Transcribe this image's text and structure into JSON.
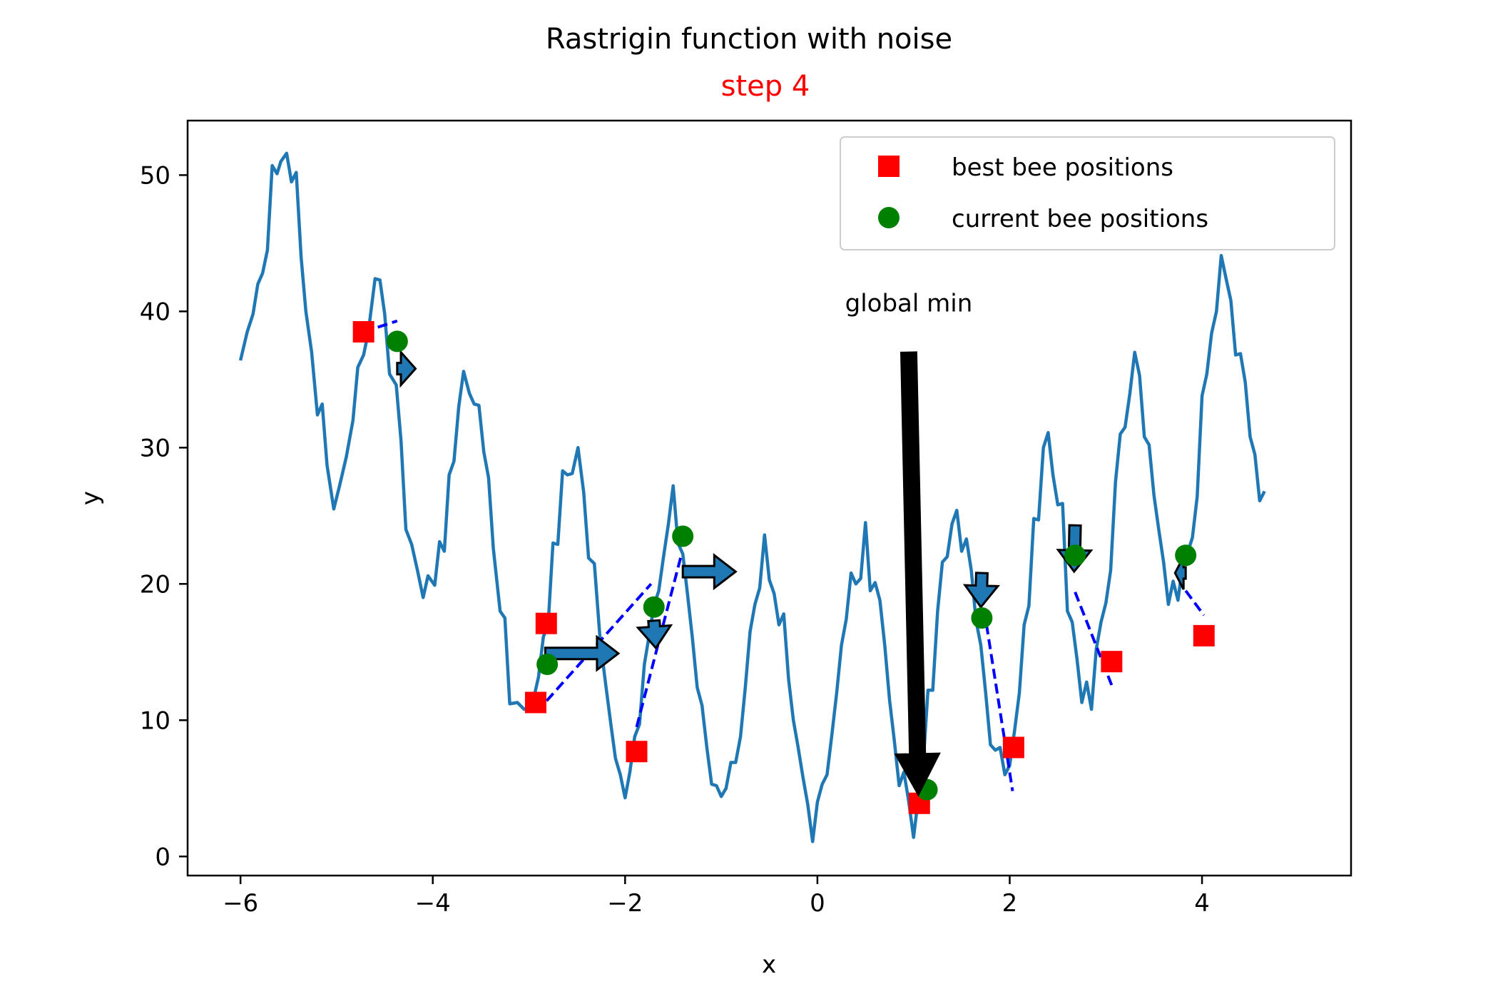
{
  "chart_data": {
    "type": "line",
    "title": "Rastrigin function with noise",
    "subtitle": "step 4",
    "subtitle_color": "#ff0000",
    "xlabel": "x",
    "ylabel": "y",
    "xlim": [
      -6.55,
      5.55
    ],
    "ylim": [
      -1.4,
      54.0
    ],
    "xticks": [
      {
        "value": -6,
        "label": "−6"
      },
      {
        "value": -4,
        "label": "−4"
      },
      {
        "value": -2,
        "label": "−2"
      },
      {
        "value": 0,
        "label": "0"
      },
      {
        "value": 2,
        "label": "2"
      },
      {
        "value": 4,
        "label": "4"
      }
    ],
    "yticks": [
      {
        "value": 0,
        "label": "0"
      },
      {
        "value": 10,
        "label": "10"
      },
      {
        "value": 20,
        "label": "20"
      },
      {
        "value": 30,
        "label": "30"
      },
      {
        "value": 40,
        "label": "40"
      },
      {
        "value": 50,
        "label": "50"
      }
    ],
    "grid": false,
    "legend_position": "top-right",
    "curve": {
      "color": "#1f77b4",
      "points": [
        [
          -6.0,
          36.4
        ],
        [
          -5.93,
          38.5
        ],
        [
          -5.87,
          39.8
        ],
        [
          -5.82,
          42.0
        ],
        [
          -5.77,
          42.8
        ],
        [
          -5.72,
          44.5
        ],
        [
          -5.67,
          50.7
        ],
        [
          -5.62,
          50.1
        ],
        [
          -5.58,
          51.0
        ],
        [
          -5.52,
          51.6
        ],
        [
          -5.47,
          49.5
        ],
        [
          -5.42,
          50.2
        ],
        [
          -5.37,
          44.0
        ],
        [
          -5.32,
          40.0
        ],
        [
          -5.26,
          37.0
        ],
        [
          -5.2,
          32.4
        ],
        [
          -5.15,
          33.2
        ],
        [
          -5.1,
          28.7
        ],
        [
          -5.03,
          25.5
        ],
        [
          -4.97,
          27.2
        ],
        [
          -4.9,
          29.3
        ],
        [
          -4.83,
          32.0
        ],
        [
          -4.78,
          35.9
        ],
        [
          -4.72,
          36.8
        ],
        [
          -4.67,
          38.5
        ],
        [
          -4.6,
          42.4
        ],
        [
          -4.55,
          42.3
        ],
        [
          -4.5,
          39.8
        ],
        [
          -4.45,
          35.4
        ],
        [
          -4.38,
          34.6
        ],
        [
          -4.33,
          30.5
        ],
        [
          -4.28,
          24.0
        ],
        [
          -4.22,
          22.9
        ],
        [
          -4.16,
          21.0
        ],
        [
          -4.1,
          19.0
        ],
        [
          -4.05,
          20.6
        ],
        [
          -3.98,
          19.9
        ],
        [
          -3.93,
          23.1
        ],
        [
          -3.88,
          22.4
        ],
        [
          -3.83,
          28.0
        ],
        [
          -3.78,
          29.0
        ],
        [
          -3.73,
          33.0
        ],
        [
          -3.68,
          35.6
        ],
        [
          -3.62,
          34.0
        ],
        [
          -3.57,
          33.2
        ],
        [
          -3.52,
          33.1
        ],
        [
          -3.47,
          29.7
        ],
        [
          -3.42,
          27.8
        ],
        [
          -3.37,
          22.6
        ],
        [
          -3.3,
          18.0
        ],
        [
          -3.25,
          17.5
        ],
        [
          -3.2,
          11.2
        ],
        [
          -3.12,
          11.3
        ],
        [
          -3.05,
          10.8
        ],
        [
          -2.97,
          11.0
        ],
        [
          -2.9,
          13.2
        ],
        [
          -2.85,
          16.1
        ],
        [
          -2.8,
          17.1
        ],
        [
          -2.75,
          23.0
        ],
        [
          -2.7,
          22.9
        ],
        [
          -2.65,
          28.3
        ],
        [
          -2.6,
          28.0
        ],
        [
          -2.55,
          28.1
        ],
        [
          -2.49,
          30.0
        ],
        [
          -2.43,
          26.7
        ],
        [
          -2.38,
          21.9
        ],
        [
          -2.32,
          21.5
        ],
        [
          -2.26,
          15.9
        ],
        [
          -2.2,
          12.5
        ],
        [
          -2.15,
          9.8
        ],
        [
          -2.1,
          7.2
        ],
        [
          -2.05,
          6.0
        ],
        [
          -2.0,
          4.3
        ],
        [
          -1.95,
          6.2
        ],
        [
          -1.9,
          8.8
        ],
        [
          -1.85,
          9.7
        ],
        [
          -1.8,
          14.1
        ],
        [
          -1.75,
          16.2
        ],
        [
          -1.7,
          18.4
        ],
        [
          -1.65,
          19.5
        ],
        [
          -1.6,
          22.0
        ],
        [
          -1.55,
          24.4
        ],
        [
          -1.5,
          27.2
        ],
        [
          -1.45,
          23.0
        ],
        [
          -1.4,
          22.2
        ],
        [
          -1.35,
          19.2
        ],
        [
          -1.3,
          16.0
        ],
        [
          -1.25,
          12.4
        ],
        [
          -1.2,
          11.1
        ],
        [
          -1.15,
          8.0
        ],
        [
          -1.1,
          5.3
        ],
        [
          -1.05,
          5.2
        ],
        [
          -1.0,
          4.4
        ],
        [
          -0.95,
          5.0
        ],
        [
          -0.9,
          6.9
        ],
        [
          -0.85,
          6.9
        ],
        [
          -0.8,
          8.8
        ],
        [
          -0.75,
          12.4
        ],
        [
          -0.7,
          16.5
        ],
        [
          -0.65,
          18.5
        ],
        [
          -0.6,
          19.7
        ],
        [
          -0.55,
          23.6
        ],
        [
          -0.5,
          20.3
        ],
        [
          -0.45,
          19.3
        ],
        [
          -0.4,
          17.0
        ],
        [
          -0.35,
          17.8
        ],
        [
          -0.3,
          13.0
        ],
        [
          -0.25,
          10.0
        ],
        [
          -0.2,
          8.0
        ],
        [
          -0.15,
          5.8
        ],
        [
          -0.1,
          3.8
        ],
        [
          -0.05,
          1.1
        ],
        [
          0.0,
          4.0
        ],
        [
          0.05,
          5.3
        ],
        [
          0.1,
          6.0
        ],
        [
          0.15,
          8.9
        ],
        [
          0.2,
          12.0
        ],
        [
          0.25,
          15.5
        ],
        [
          0.3,
          17.4
        ],
        [
          0.35,
          20.8
        ],
        [
          0.4,
          20.0
        ],
        [
          0.45,
          20.4
        ],
        [
          0.5,
          24.5
        ],
        [
          0.55,
          19.5
        ],
        [
          0.6,
          20.1
        ],
        [
          0.65,
          18.8
        ],
        [
          0.7,
          15.5
        ],
        [
          0.75,
          11.5
        ],
        [
          0.8,
          8.5
        ],
        [
          0.85,
          5.2
        ],
        [
          0.9,
          6.2
        ],
        [
          0.95,
          4.0
        ],
        [
          1.0,
          1.4
        ],
        [
          1.05,
          4.3
        ],
        [
          1.1,
          6.8
        ],
        [
          1.15,
          12.2
        ],
        [
          1.2,
          12.2
        ],
        [
          1.25,
          18.0
        ],
        [
          1.3,
          21.6
        ],
        [
          1.35,
          22.0
        ],
        [
          1.4,
          24.4
        ],
        [
          1.45,
          25.4
        ],
        [
          1.5,
          22.4
        ],
        [
          1.55,
          23.3
        ],
        [
          1.6,
          21.0
        ],
        [
          1.65,
          17.3
        ],
        [
          1.7,
          15.5
        ],
        [
          1.75,
          12.0
        ],
        [
          1.8,
          8.2
        ],
        [
          1.85,
          7.8
        ],
        [
          1.9,
          8.0
        ],
        [
          1.95,
          6.0
        ],
        [
          2.0,
          6.7
        ],
        [
          2.05,
          9.2
        ],
        [
          2.1,
          12.0
        ],
        [
          2.15,
          17.0
        ],
        [
          2.2,
          18.4
        ],
        [
          2.25,
          24.8
        ],
        [
          2.3,
          24.7
        ],
        [
          2.35,
          30.0
        ],
        [
          2.4,
          31.1
        ],
        [
          2.45,
          28.0
        ],
        [
          2.5,
          25.8
        ],
        [
          2.55,
          25.9
        ],
        [
          2.6,
          18.0
        ],
        [
          2.65,
          17.2
        ],
        [
          2.7,
          14.5
        ],
        [
          2.75,
          11.3
        ],
        [
          2.8,
          12.8
        ],
        [
          2.85,
          10.8
        ],
        [
          2.9,
          15.2
        ],
        [
          2.95,
          17.2
        ],
        [
          3.0,
          18.6
        ],
        [
          3.05,
          21.0
        ],
        [
          3.1,
          27.5
        ],
        [
          3.15,
          31.0
        ],
        [
          3.2,
          31.5
        ],
        [
          3.25,
          34.0
        ],
        [
          3.3,
          37.0
        ],
        [
          3.35,
          35.3
        ],
        [
          3.4,
          30.8
        ],
        [
          3.45,
          30.2
        ],
        [
          3.5,
          26.5
        ],
        [
          3.55,
          24.0
        ],
        [
          3.6,
          21.6
        ],
        [
          3.65,
          18.5
        ],
        [
          3.7,
          20.2
        ],
        [
          3.75,
          18.8
        ],
        [
          3.8,
          21.5
        ],
        [
          3.85,
          22.3
        ],
        [
          3.9,
          23.4
        ],
        [
          3.95,
          26.4
        ],
        [
          4.0,
          33.8
        ],
        [
          4.05,
          35.4
        ],
        [
          4.1,
          38.4
        ],
        [
          4.15,
          40.0
        ],
        [
          4.2,
          44.1
        ],
        [
          4.25,
          42.4
        ],
        [
          4.3,
          40.8
        ],
        [
          4.35,
          36.8
        ],
        [
          4.4,
          36.9
        ],
        [
          4.45,
          34.8
        ],
        [
          4.5,
          30.8
        ],
        [
          4.55,
          29.5
        ],
        [
          4.6,
          26.1
        ],
        [
          4.65,
          26.8
        ]
      ]
    },
    "best_positions": {
      "legend_label": "best bee positions",
      "color": "#ff0000",
      "points": [
        [
          -4.72,
          38.5
        ],
        [
          -2.82,
          17.1
        ],
        [
          -2.93,
          11.3
        ],
        [
          -1.88,
          7.7
        ],
        [
          1.06,
          3.9
        ],
        [
          2.04,
          8.0
        ],
        [
          3.06,
          14.3
        ],
        [
          4.02,
          16.2
        ]
      ]
    },
    "current_positions": {
      "legend_label": "current bee positions",
      "color": "#008000",
      "points": [
        [
          -4.37,
          37.8
        ],
        [
          -2.81,
          14.1
        ],
        [
          -1.7,
          18.3
        ],
        [
          -1.4,
          23.5
        ],
        [
          1.14,
          4.9
        ],
        [
          1.71,
          17.5
        ],
        [
          2.68,
          22.1
        ],
        [
          3.83,
          22.1
        ]
      ]
    },
    "dashed_links": {
      "color": "#0000ff",
      "segments": [
        [
          [
            -4.72,
            38.5
          ],
          [
            -4.37,
            39.3
          ]
        ],
        [
          [
            -2.92,
            10.6
          ],
          [
            -1.73,
            20.0
          ]
        ],
        [
          [
            -1.88,
            9.5
          ],
          [
            -1.42,
            22.0
          ]
        ],
        [
          [
            1.71,
            19.2
          ],
          [
            2.03,
            4.8
          ]
        ],
        [
          [
            2.68,
            19.4
          ],
          [
            3.07,
            12.4
          ]
        ],
        [
          [
            3.83,
            19.5
          ],
          [
            4.02,
            17.7
          ]
        ]
      ]
    },
    "velocity_arrows": {
      "fill": "#1f77b4",
      "arrows": [
        [
          [
            -4.37,
            35.8
          ],
          [
            -4.18,
            35.8
          ]
        ],
        [
          [
            -2.83,
            14.9
          ],
          [
            -2.07,
            14.9
          ]
        ],
        [
          [
            -1.7,
            17.3
          ],
          [
            -1.68,
            15.3
          ]
        ],
        [
          [
            -1.4,
            20.9
          ],
          [
            -0.85,
            20.9
          ]
        ],
        [
          [
            1.71,
            20.8
          ],
          [
            1.7,
            18.3
          ]
        ],
        [
          [
            2.68,
            24.3
          ],
          [
            2.67,
            20.9
          ]
        ],
        [
          [
            3.83,
            20.8
          ],
          [
            3.72,
            20.8
          ]
        ]
      ]
    },
    "annotation": {
      "text": "global min",
      "text_anchor": [
        0.95,
        40.0
      ],
      "arrow_tail": [
        0.95,
        37.0
      ],
      "arrow_tip": [
        1.05,
        4.5
      ]
    }
  }
}
